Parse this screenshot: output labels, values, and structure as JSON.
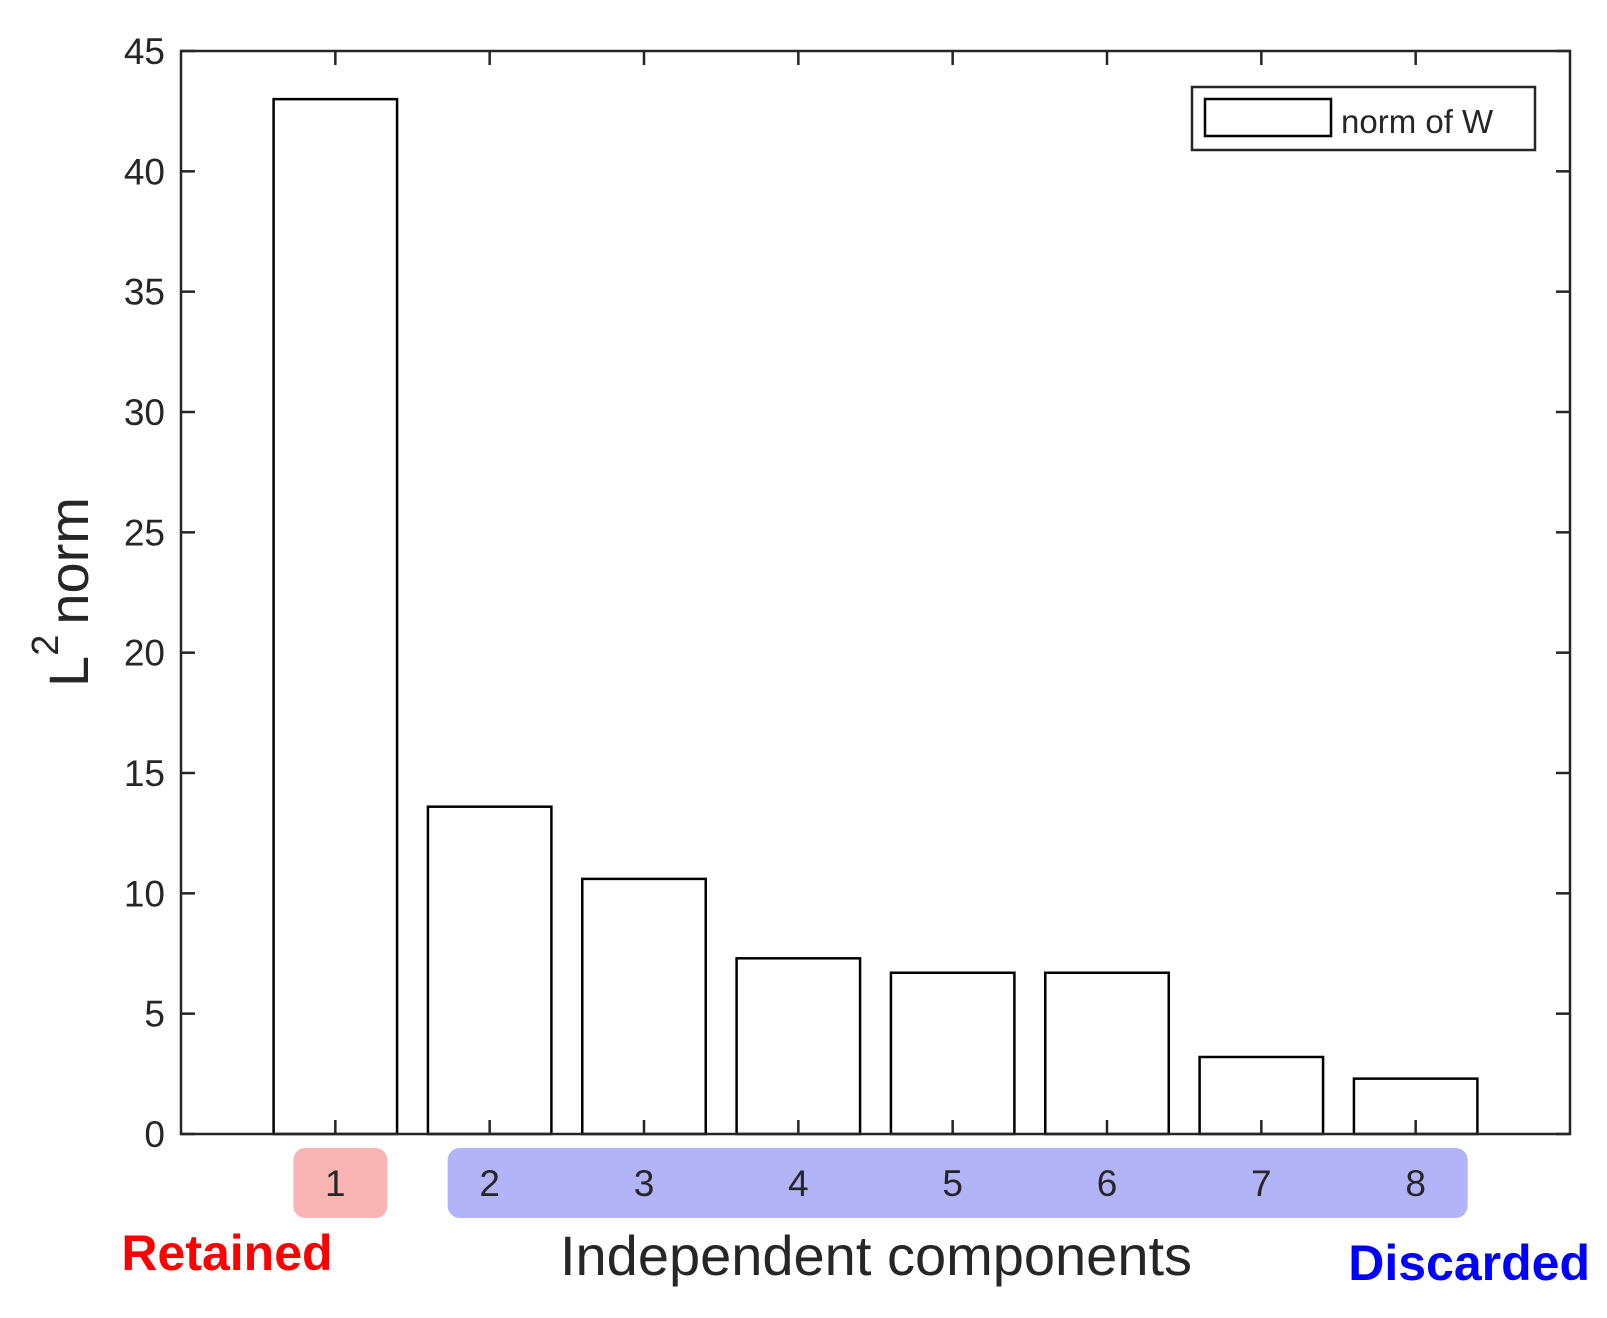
{
  "chart_data": {
    "type": "bar",
    "categories": [
      "1",
      "2",
      "3",
      "4",
      "5",
      "6",
      "7",
      "8"
    ],
    "series": [
      {
        "name": "norm of W",
        "values": [
          43.0,
          13.6,
          10.6,
          7.3,
          6.7,
          6.7,
          3.2,
          2.3
        ]
      }
    ],
    "xlabel": "Independent components",
    "ylabel_base": "L",
    "ylabel_sup": "2",
    "ylabel_rest": "norm",
    "ylim": [
      0,
      45
    ],
    "xlim": [
      0,
      9
    ],
    "yticks": [
      0,
      5,
      10,
      15,
      20,
      25,
      30,
      35,
      40,
      45
    ],
    "grid": false,
    "legend": {
      "position": "top-right",
      "entries": [
        "norm of W"
      ]
    },
    "bar_fill": "#ffffff",
    "bar_stroke": "#000000",
    "groups": [
      {
        "label": "Retained",
        "color": "#ff0000",
        "highlight": "#f9b4b4",
        "categories": [
          "1"
        ]
      },
      {
        "label": "Discarded",
        "color": "#0000ff",
        "highlight": "#b3b3f8",
        "categories": [
          "2",
          "3",
          "4",
          "5",
          "6",
          "7",
          "8"
        ]
      }
    ]
  }
}
